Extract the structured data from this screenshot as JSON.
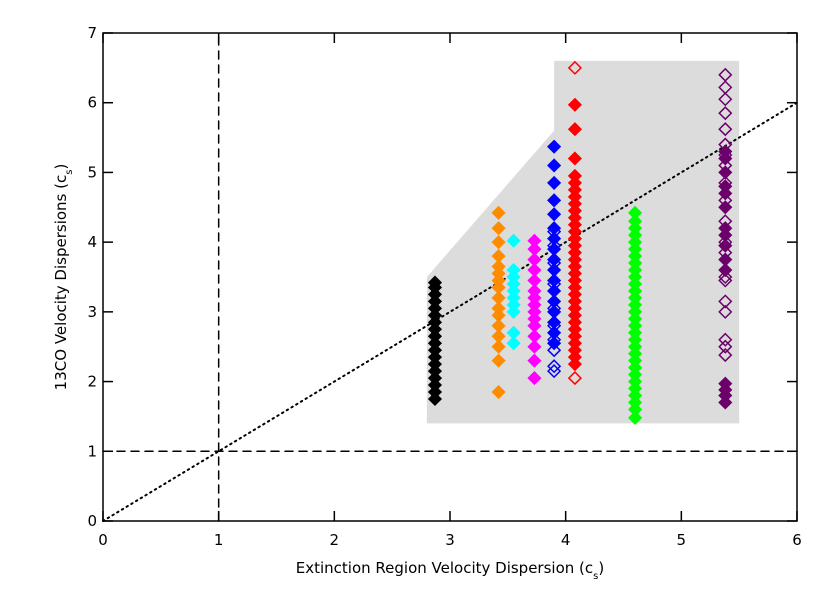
{
  "chart_data": {
    "type": "scatter",
    "x_label": [
      "Extinction Region Velocity Dispersion (c",
      "s",
      ")"
    ],
    "y_label": [
      "13CO Velocity Dispersions (c",
      "s",
      ")"
    ],
    "xlim": [
      0,
      6
    ],
    "ylim": [
      0,
      7
    ],
    "xticks": [
      0,
      1,
      2,
      3,
      4,
      5,
      6
    ],
    "yticks": [
      0,
      1,
      2,
      3,
      4,
      5,
      6,
      7
    ],
    "shaded_region": {
      "color": "#dcdcdc",
      "x": [
        2.8,
        2.8,
        3.9,
        3.9,
        5.5,
        5.5
      ],
      "y": [
        1.4,
        3.5,
        5.6,
        6.6,
        6.6,
        1.4
      ]
    },
    "reference_lines": [
      {
        "style": "dashed",
        "x": [
          1,
          1
        ],
        "y": [
          0,
          7
        ]
      },
      {
        "style": "dashed",
        "x": [
          0,
          6
        ],
        "y": [
          1,
          1
        ]
      },
      {
        "style": "dotted",
        "x": [
          0,
          6
        ],
        "y": [
          0,
          6
        ]
      }
    ],
    "series": [
      {
        "color": "#000000",
        "filled": true,
        "x": [
          2.87,
          2.87,
          2.87,
          2.87,
          2.87,
          2.87,
          2.87,
          2.87,
          2.87,
          2.87,
          2.87,
          2.87,
          2.87,
          2.87,
          2.87,
          2.87,
          2.87,
          2.87
        ],
        "values": [
          1.75,
          1.85,
          1.95,
          2.05,
          2.15,
          2.25,
          2.35,
          2.45,
          2.55,
          2.65,
          2.75,
          2.85,
          2.95,
          3.05,
          3.15,
          3.25,
          3.35,
          3.42
        ]
      },
      {
        "color": "#ff8c00",
        "filled": true,
        "x": [
          3.42,
          3.42,
          3.42,
          3.42,
          3.42,
          3.42,
          3.42,
          3.42,
          3.42,
          3.42,
          3.42,
          3.42,
          3.42,
          3.42,
          3.42,
          3.42
        ],
        "values": [
          1.85,
          2.3,
          2.5,
          2.65,
          2.8,
          2.95,
          3.05,
          3.2,
          3.35,
          3.45,
          3.55,
          3.65,
          3.8,
          4.0,
          4.2,
          4.42
        ]
      },
      {
        "color": "#00ffff",
        "filled": true,
        "x": [
          3.55,
          3.55,
          3.55,
          3.55,
          3.55,
          3.55,
          3.55,
          3.55,
          3.55,
          3.55
        ],
        "values": [
          2.55,
          2.7,
          3.0,
          3.1,
          3.2,
          3.3,
          3.4,
          3.5,
          3.6,
          4.02
        ]
      },
      {
        "color": "#ff00ff",
        "filled": true,
        "x": [
          3.73,
          3.73,
          3.73,
          3.73,
          3.73,
          3.73,
          3.73,
          3.73,
          3.73,
          3.73,
          3.73,
          3.73,
          3.73,
          3.73,
          3.73
        ],
        "values": [
          2.05,
          2.3,
          2.5,
          2.65,
          2.8,
          2.9,
          3.0,
          3.1,
          3.2,
          3.3,
          3.45,
          3.6,
          3.75,
          3.9,
          4.02
        ]
      },
      {
        "color": "#0000ff",
        "filled": true,
        "x": [
          3.9,
          3.9,
          3.9,
          3.9,
          3.9,
          3.9,
          3.9,
          3.9,
          3.9,
          3.9,
          3.9,
          3.9,
          3.9,
          3.9,
          3.9,
          3.9,
          3.9
        ],
        "values": [
          5.37,
          5.1,
          4.85,
          4.6,
          4.4,
          4.2,
          4.05,
          3.9,
          3.75,
          3.6,
          3.45,
          3.3,
          3.15,
          3.0,
          2.85,
          2.7,
          2.55
        ]
      },
      {
        "color": "#0000ff",
        "filled": false,
        "x": [
          3.9,
          3.9,
          3.9,
          3.9,
          3.9,
          3.9,
          3.9,
          3.9,
          3.9,
          3.9
        ],
        "values": [
          2.15,
          2.22,
          2.45,
          2.6,
          2.8,
          3.05,
          3.4,
          3.7,
          3.95,
          4.15
        ]
      },
      {
        "color": "#ff0000",
        "filled": true,
        "x": [
          4.08,
          4.08,
          4.08,
          4.08,
          4.08,
          4.08,
          4.08,
          4.08,
          4.08,
          4.08,
          4.08,
          4.08,
          4.08,
          4.08,
          4.08,
          4.08,
          4.08,
          4.08,
          4.08,
          4.08,
          4.08,
          4.08,
          4.08,
          4.08,
          4.08,
          4.08,
          4.08,
          4.08,
          4.08,
          4.08,
          4.08
        ],
        "values": [
          5.97,
          5.62,
          5.2,
          4.95,
          4.85,
          4.75,
          4.65,
          4.55,
          4.45,
          4.35,
          4.25,
          4.15,
          4.05,
          3.95,
          3.85,
          3.75,
          3.65,
          3.55,
          3.45,
          3.35,
          3.25,
          3.15,
          3.05,
          2.95,
          2.85,
          2.75,
          2.65,
          2.55,
          2.45,
          2.35,
          2.25
        ]
      },
      {
        "color": "#ff0000",
        "filled": false,
        "x": [
          4.08,
          4.08
        ],
        "values": [
          6.5,
          2.05
        ]
      },
      {
        "color": "#00ff00",
        "filled": true,
        "x": [
          4.6,
          4.6,
          4.6,
          4.6,
          4.6,
          4.6,
          4.6,
          4.6,
          4.6,
          4.6,
          4.6,
          4.6,
          4.6,
          4.6,
          4.6,
          4.6,
          4.6,
          4.6,
          4.6,
          4.6,
          4.6,
          4.6,
          4.6,
          4.6,
          4.6,
          4.6,
          4.6,
          4.6,
          4.6,
          4.6
        ],
        "values": [
          1.48,
          1.6,
          1.7,
          1.8,
          1.9,
          2.0,
          2.1,
          2.2,
          2.3,
          2.4,
          2.5,
          2.6,
          2.7,
          2.8,
          2.9,
          3.0,
          3.1,
          3.2,
          3.3,
          3.4,
          3.5,
          3.6,
          3.7,
          3.8,
          3.9,
          4.0,
          4.1,
          4.2,
          4.3,
          4.42
        ]
      },
      {
        "color": "#6b006b",
        "filled": false,
        "x": [
          5.38,
          5.38,
          5.38,
          5.38,
          5.38,
          5.38,
          5.38,
          5.38,
          5.38,
          5.38,
          5.38,
          5.38,
          5.38,
          5.38,
          5.38,
          5.38,
          5.38,
          5.38,
          5.38,
          5.38
        ],
        "values": [
          6.4,
          6.22,
          6.05,
          5.85,
          5.62,
          5.4,
          5.25,
          5.1,
          4.85,
          4.6,
          4.3,
          4.0,
          3.85,
          3.5,
          3.45,
          3.15,
          3.0,
          2.6,
          2.5,
          2.38
        ]
      },
      {
        "color": "#6b006b",
        "filled": true,
        "x": [
          5.38,
          5.38,
          5.38,
          5.38,
          5.38,
          5.38,
          5.38,
          5.38,
          5.38,
          5.38,
          5.38,
          5.38,
          5.38,
          5.38,
          5.38
        ],
        "values": [
          5.3,
          5.2,
          5.0,
          4.8,
          4.7,
          4.5,
          4.2,
          4.1,
          3.95,
          3.75,
          3.6,
          1.97,
          1.88,
          1.8,
          1.7
        ]
      }
    ]
  }
}
